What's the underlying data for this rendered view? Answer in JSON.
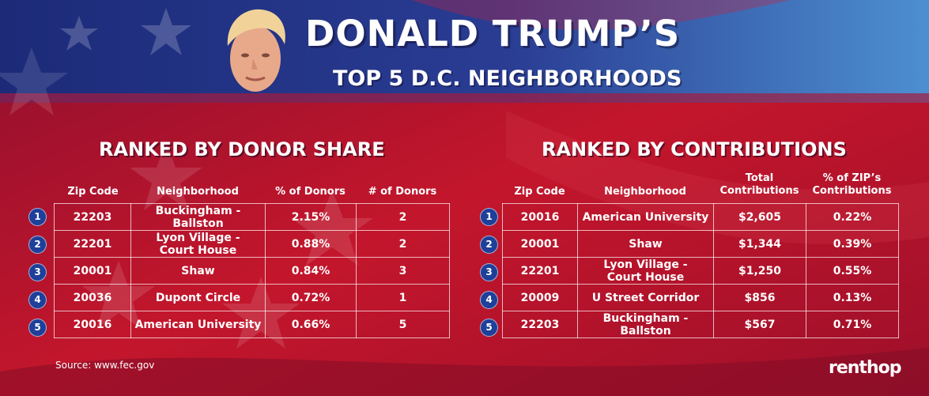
{
  "colors": {
    "navy": "#1d2e80",
    "red": "#b3122a",
    "rank_badge": "#1e3f9a"
  },
  "header": {
    "title": "DONALD TRUMP’S",
    "subtitle": "TOP 5 D.C. NEIGHBORHOODS",
    "portrait_icon": "donald-trump-face-icon"
  },
  "chart_data": [
    {
      "type": "table",
      "title": "RANKED BY DONOR SHARE",
      "columns": [
        "Zip Code",
        "Neighborhood",
        "% of Donors",
        "# of Donors"
      ],
      "rows": [
        {
          "rank": "1",
          "zip": "22203",
          "neighborhood": [
            "Buckingham - Ballston"
          ],
          "pct": "2.15%",
          "num": "2"
        },
        {
          "rank": "2",
          "zip": "22201",
          "neighborhood": [
            "Lyon Village -",
            "Court House"
          ],
          "pct": "0.88%",
          "num": "2"
        },
        {
          "rank": "3",
          "zip": "20001",
          "neighborhood": [
            "Shaw"
          ],
          "pct": "0.84%",
          "num": "3"
        },
        {
          "rank": "4",
          "zip": "20036",
          "neighborhood": [
            "Dupont Circle"
          ],
          "pct": "0.72%",
          "num": "1"
        },
        {
          "rank": "5",
          "zip": "20016",
          "neighborhood": [
            "American University"
          ],
          "pct": "0.66%",
          "num": "5"
        }
      ]
    },
    {
      "type": "table",
      "title": "RANKED BY CONTRIBUTIONS",
      "columns": [
        "Zip Code",
        "Neighborhood",
        [
          "Total",
          "Contributions"
        ],
        [
          "% of ZIP’s",
          "Contributions"
        ]
      ],
      "rows": [
        {
          "rank": "1",
          "zip": "20016",
          "neighborhood": [
            "American University"
          ],
          "total": "$2,605",
          "pct": "0.22%"
        },
        {
          "rank": "2",
          "zip": "20001",
          "neighborhood": [
            "Shaw"
          ],
          "total": "$1,344",
          "pct": "0.39%"
        },
        {
          "rank": "3",
          "zip": "22201",
          "neighborhood": [
            "Lyon Village -",
            "Court House"
          ],
          "total": "$1,250",
          "pct": "0.55%"
        },
        {
          "rank": "4",
          "zip": "20009",
          "neighborhood": [
            "U Street Corridor"
          ],
          "total": "$856",
          "pct": "0.13%"
        },
        {
          "rank": "5",
          "zip": "22203",
          "neighborhood": [
            "Buckingham - Ballston"
          ],
          "total": "$567",
          "pct": "0.71%"
        }
      ]
    }
  ],
  "footer": {
    "source": "Source: www.fec.gov",
    "logo": "renthop"
  }
}
